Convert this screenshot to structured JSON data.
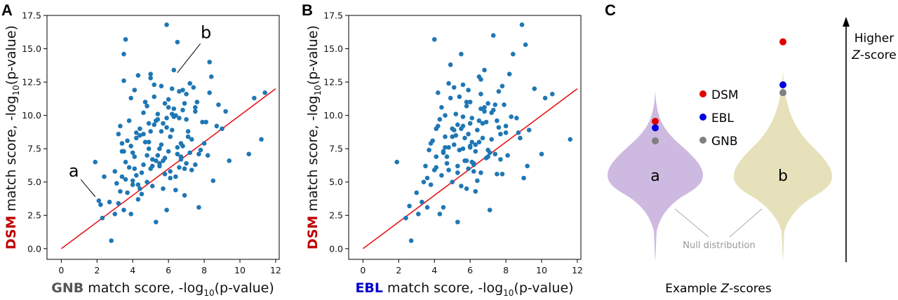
{
  "figure": {
    "panels": [
      {
        "letter": "A"
      },
      {
        "letter": "B"
      },
      {
        "letter": "C"
      }
    ]
  },
  "colors": {
    "point": "#1f77b4",
    "line": "#d62728",
    "dsm": "#c00000",
    "gnb": "#555555",
    "ebl": "#0000cc",
    "violin_a": "#c8b3dd",
    "violin_b": "#e6e0b8"
  },
  "chart_data": [
    {
      "type": "scatter",
      "panel": "A",
      "ylabel_prefix": "DSM",
      "ylabel_rest": " match score, -log",
      "ylabel_sub": "10",
      "ylabel_end": "(p-value)",
      "xlabel_prefix": "GNB",
      "xlabel_rest": " match score, -log",
      "xlabel_sub": "10",
      "xlabel_end": "(p-value)",
      "xlim": [
        -0.8,
        12.2
      ],
      "ylim": [
        -0.8,
        17.5
      ],
      "xticks": [
        0,
        2,
        4,
        6,
        8,
        10,
        12
      ],
      "yticks": [
        0.0,
        2.5,
        5.0,
        7.5,
        10.0,
        12.5,
        15.0,
        17.5
      ],
      "ytick_labels": [
        "0.0",
        "2.5",
        "5.0",
        "7.5",
        "10.0",
        "12.5",
        "15.0",
        "17.5"
      ],
      "reference_line": {
        "x": [
          0,
          12
        ],
        "y": [
          0,
          12
        ]
      },
      "annotations": [
        {
          "text": "a",
          "text_x": 0.7,
          "text_y": 5.4,
          "point_x": 1.9,
          "point_y": 3.9
        },
        {
          "text": "b",
          "text_x": 8.1,
          "text_y": 15.8,
          "point_x": 6.5,
          "point_y": 13.2
        }
      ],
      "x": [
        2.1,
        2.3,
        2.2,
        1.9,
        2.8,
        3.0,
        3.2,
        3.3,
        3.5,
        3.6,
        3.5,
        3.4,
        3.7,
        3.8,
        3.9,
        3.6,
        4.0,
        4.1,
        4.2,
        4.3,
        4.1,
        4.5,
        4.6,
        4.4,
        4.8,
        4.9,
        5.0,
        5.1,
        5.2,
        5.3,
        5.0,
        5.4,
        5.5,
        5.6,
        5.7,
        5.8,
        5.9,
        6.0,
        6.1,
        6.2,
        6.3,
        6.4,
        6.0,
        6.5,
        6.6,
        6.7,
        6.8,
        6.9,
        7.0,
        7.1,
        7.2,
        7.3,
        7.5,
        7.6,
        7.8,
        8.0,
        8.1,
        8.3,
        8.5,
        8.8,
        9.0,
        9.4,
        10.5,
        10.8,
        11.2,
        11.4,
        3.2,
        3.4,
        3.8,
        4.0,
        4.2,
        4.4,
        4.6,
        4.8,
        5.0,
        5.2,
        5.4,
        5.6,
        5.8,
        6.0,
        6.2,
        6.4,
        6.6,
        6.8,
        7.0,
        3.3,
        3.7,
        4.1,
        4.5,
        4.9,
        5.3,
        5.7,
        6.1,
        6.5,
        6.9,
        7.3,
        7.7,
        3.6,
        4.3,
        5.1,
        5.9,
        6.7,
        7.5,
        8.2,
        4.7,
        5.5,
        6.3,
        3.9,
        4.8,
        5.6,
        6.4,
        7.2,
        2.4,
        2.7,
        3.1,
        3.5,
        3.9,
        4.3,
        4.7,
        5.1,
        5.5,
        5.9,
        6.3,
        6.7,
        7.1,
        7.5,
        7.9,
        8.3,
        8.7,
        9.2,
        3.0,
        4.4,
        5.8,
        7.0,
        5.2,
        6.8,
        4.0,
        4.6,
        5.4,
        6.2,
        7.4,
        3.4,
        5.0,
        6.6,
        8.4,
        3.5,
        4.2,
        5.3,
        6.1,
        6.9,
        7.7,
        4.9,
        5.7,
        6.5,
        5.9
      ],
      "y": [
        3.6,
        2.3,
        3.3,
        6.5,
        0.6,
        2.6,
        3.4,
        4.3,
        14.6,
        15.7,
        12.6,
        5.4,
        8.1,
        9.6,
        2.6,
        6.5,
        5.1,
        11.9,
        8.3,
        13.0,
        6.9,
        4.1,
        10.2,
        9.0,
        5.0,
        7.5,
        8.8,
        4.7,
        11.4,
        2.0,
        13.1,
        10.1,
        6.4,
        7.8,
        9.4,
        5.6,
        16.8,
        10.6,
        8.4,
        12.0,
        13.4,
        4.4,
        11.2,
        15.5,
        9.8,
        6.9,
        7.7,
        10.9,
        11.6,
        8.4,
        7.2,
        5.9,
        10.3,
        11.0,
        7.4,
        7.9,
        9.5,
        14.0,
        5.1,
        10.8,
        9.0,
        6.6,
        7.1,
        11.3,
        8.2,
        11.7,
        8.6,
        7.3,
        6.1,
        7.2,
        5.5,
        8.5,
        6.3,
        7.0,
        6.0,
        9.3,
        7.0,
        8.8,
        6.8,
        7.3,
        8.9,
        5.4,
        6.1,
        10.4,
        6.4,
        9.2,
        4.2,
        6.0,
        5.7,
        8.0,
        9.6,
        6.6,
        5.8,
        7.6,
        6.0,
        8.2,
        7.1,
        5.2,
        4.8,
        6.7,
        9.8,
        7.9,
        6.3,
        7.0,
        11.0,
        6.2,
        9.9,
        7.7,
        10.7,
        12.2,
        10.0,
        12.4,
        5.4,
        3.5,
        4.9,
        7.3,
        11.3,
        3.7,
        8.0,
        6.2,
        7.5,
        9.1,
        10.5,
        6.7,
        8.8,
        10.6,
        9.5,
        11.7,
        9.2,
        10.3,
        5.8,
        4.5,
        10.9,
        9.7,
        12.3,
        11.9,
        4.8,
        8.6,
        9.7,
        10.1,
        12.1,
        7.9,
        12.8,
        11.8,
        12.9,
        2.9,
        8.7,
        6.6,
        5.3,
        4.0,
        3.1,
        9.4,
        4.5,
        7.1,
        2.9
      ]
    },
    {
      "type": "scatter",
      "panel": "B",
      "ylabel_prefix": "DSM",
      "ylabel_rest": " match score, -log",
      "ylabel_sub": "10",
      "ylabel_end": "(p-value)",
      "xlabel_prefix": "EBL",
      "xlabel_rest": " match score, -log",
      "xlabel_sub": "10",
      "xlabel_end": "(p-value)",
      "xlim": [
        -0.8,
        12.2
      ],
      "ylim": [
        -0.8,
        17.5
      ],
      "xticks": [
        0,
        2,
        4,
        6,
        8,
        10,
        12
      ],
      "yticks": [
        0.0,
        2.5,
        5.0,
        7.5,
        10.0,
        12.5,
        15.0,
        17.5
      ],
      "ytick_labels": [
        "0.0",
        "2.5",
        "5.0",
        "7.5",
        "10.0",
        "12.5",
        "15.0",
        "17.5"
      ],
      "reference_line": {
        "x": [
          0,
          12
        ],
        "y": [
          0,
          12
        ]
      },
      "x": [
        2.7,
        2.4,
        2.6,
        1.9,
        3.1,
        3.3,
        3.0,
        3.6,
        3.8,
        4.0,
        4.1,
        4.3,
        4.5,
        4.6,
        4.8,
        5.0,
        5.1,
        5.3,
        5.5,
        5.6,
        5.8,
        6.0,
        6.1,
        6.3,
        6.5,
        6.6,
        6.8,
        7.0,
        7.1,
        7.3,
        7.5,
        7.6,
        7.8,
        8.0,
        8.2,
        8.4,
        8.6,
        8.9,
        9.1,
        9.3,
        9.6,
        10.0,
        10.2,
        10.6,
        11.6,
        4.1,
        4.6,
        5.3,
        6.2,
        7.1,
        5.6,
        4.4,
        3.6,
        6.6,
        5.9,
        5.1,
        4.8,
        5.4,
        6.0,
        6.4,
        6.8,
        7.2,
        4.2,
        4.9,
        5.7,
        6.3,
        7.0,
        7.7,
        3.9,
        4.7,
        5.5,
        6.1,
        6.9,
        3.5,
        4.3,
        5.2,
        6.0,
        6.7,
        7.4,
        8.1,
        4.0,
        4.5,
        5.0,
        5.8,
        6.5,
        7.3,
        3.7,
        4.4,
        5.1,
        5.9,
        6.6,
        8.3,
        9.0,
        4.6,
        5.3,
        6.2,
        7.0,
        7.8,
        3.4,
        4.2,
        5.6,
        6.4,
        7.2,
        8.0,
        5.0,
        5.8,
        6.6,
        4.7,
        5.5,
        6.3,
        4.8,
        5.7,
        6.8,
        7.6,
        3.8,
        5.4,
        6.0,
        7.9,
        4.1,
        6.9,
        5.2,
        6.1,
        7.4,
        4.5,
        5.9,
        6.7,
        8.7,
        5.3,
        6.5,
        4.9,
        7.5,
        5.6,
        6.2,
        9.2,
        7.7,
        8.8,
        5.8
      ],
      "y": [
        0.6,
        2.3,
        3.2,
        6.5,
        2.6,
        3.5,
        4.2,
        5.3,
        4.8,
        15.7,
        9.0,
        2.6,
        3.1,
        8.4,
        7.6,
        5.0,
        12.1,
        2.0,
        14.6,
        9.2,
        6.6,
        11.0,
        8.0,
        4.3,
        12.9,
        10.5,
        13.4,
        7.4,
        2.9,
        16.0,
        9.6,
        11.8,
        5.6,
        8.7,
        13.1,
        14.6,
        9.8,
        16.8,
        15.3,
        8.9,
        12.0,
        7.1,
        11.3,
        11.6,
        8.2,
        6.9,
        7.6,
        5.7,
        6.3,
        7.2,
        9.9,
        10.6,
        3.1,
        12.7,
        6.0,
        8.9,
        5.9,
        7.4,
        9.4,
        5.1,
        10.3,
        8.2,
        9.2,
        11.3,
        6.6,
        7.8,
        10.9,
        6.7,
        8.1,
        6.4,
        4.7,
        6.5,
        9.5,
        6.2,
        9.7,
        10.1,
        7.7,
        8.3,
        7.1,
        7.0,
        5.9,
        7.2,
        9.0,
        11.0,
        9.6,
        10.4,
        7.4,
        5.5,
        7.8,
        8.6,
        11.6,
        9.9,
        5.3,
        10.0,
        6.2,
        5.8,
        6.9,
        12.2,
        5.0,
        11.7,
        12.3,
        8.9,
        10.2,
        9.2,
        8.4,
        10.7,
        5.7,
        6.9,
        9.0,
        7.3,
        12.4,
        8.3,
        10.6,
        9.1,
        7.9,
        11.4,
        7.6,
        10.8,
        6.1,
        6.8,
        8.5,
        9.8,
        10.8,
        7.3,
        11.9,
        9.4,
        8.7,
        9.3,
        8.0,
        13.8,
        5.6,
        7.5,
        6.4,
        6.2,
        8.6,
        8.3,
        4.5
      ]
    },
    {
      "type": "violin",
      "panel": "C",
      "categories": [
        "a",
        "b"
      ],
      "legend": [
        {
          "name": "DSM",
          "color": "#e00000"
        },
        {
          "name": "EBL",
          "color": "#0000e0"
        },
        {
          "name": "GNB",
          "color": "#808080"
        }
      ],
      "null_label": "Null distribution",
      "xlabel_text": "Example ",
      "xlabel_italic": "Z",
      "xlabel_end": "-scores",
      "arrow_label_line1": "Higher",
      "arrow_label_italic": "Z",
      "arrow_label_line2": "-score",
      "scores": {
        "a": {
          "DSM": 10.7,
          "EBL": 10.2,
          "GNB": 9.2
        },
        "b": {
          "DSM": 16.8,
          "EBL": 13.5,
          "GNB": 12.9
        }
      }
    }
  ]
}
